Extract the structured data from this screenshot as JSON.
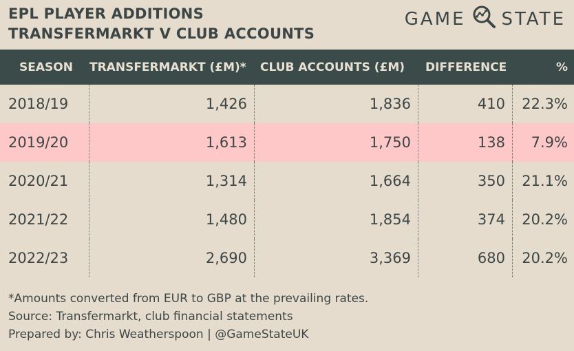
{
  "title": {
    "line1": "EPL PLAYER ADDITIONS",
    "line2": "TRANSFERMARKT V CLUB ACCOUNTS"
  },
  "brand": {
    "left": "GAME",
    "right": "STATE",
    "icon": "magnifier-chart-icon"
  },
  "table": {
    "headers": [
      "SEASON",
      "TRANSFERMARKT (£M)*",
      "CLUB ACCOUNTS (£M)",
      "DIFFERENCE",
      "%"
    ],
    "rows": [
      [
        "2018/19",
        "1,426",
        "1,836",
        "410",
        "22.3%"
      ],
      [
        "2019/20",
        "1,613",
        "1,750",
        "138",
        "7.9%"
      ],
      [
        "2020/21",
        "1,314",
        "1,664",
        "350",
        "21.1%"
      ],
      [
        "2021/22",
        "1,480",
        "1,854",
        "374",
        "20.2%"
      ],
      [
        "2022/23",
        "2,690",
        "3,369",
        "680",
        "20.2%"
      ]
    ],
    "highlight_color": "#ffc8c8",
    "header_color": "#3b4b4a"
  },
  "notes": {
    "line1": "*Amounts converted from EUR to GBP at the prevailing rates.",
    "line2": "Source: Transfermarkt, club financial statements",
    "line3": "Prepared by: Chris Weatherspoon | @GameStateUK"
  }
}
